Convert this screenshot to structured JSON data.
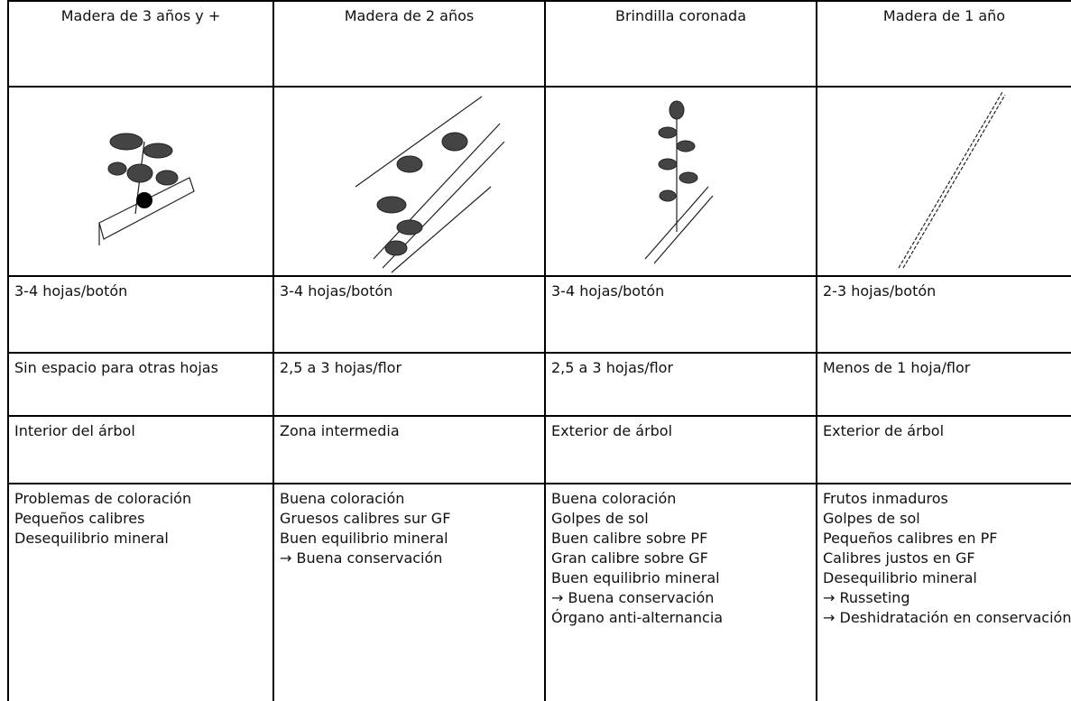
{
  "table": {
    "header": [
      "Madera de 3 años y +",
      "Madera de 2 años",
      "Brindilla coronada",
      "Madera de 1 año"
    ],
    "rows": [
      [
        "3-4 hojas/botón",
        "3-4 hojas/botón",
        "3-4 hojas/botón",
        "2-3 hojas/botón"
      ],
      [
        "Sin espacio para otras hojas",
        "2,5 a 3 hojas/flor",
        "2,5 a 3 hojas/flor",
        "Menos de 1 hoja/flor"
      ],
      [
        "Interior del árbol",
        "Zona intermedia",
        "Exterior de árbol",
        "Exterior de árbol"
      ],
      [
        [
          "Problemas de coloración",
          "Pequeños calibres",
          "Desequilibrio mineral"
        ],
        [
          "Buena coloración",
          "Gruesos calibres sur GF",
          "Buen equilibrio mineral",
          "→ Buena conservación"
        ],
        [
          "Buena coloración",
          "Golpes de sol",
          "Buen calibre sobre PF",
          "Gran calibre sobre GF",
          "Buen equilibrio mineral",
          "→ Buena conservación",
          "Órgano anti-alternancia"
        ],
        [
          "Frutos inmaduros",
          "Golpes de sol",
          "Pequeños calibres en PF",
          "Calibres justos en GF",
          "Desequilibrio mineral",
          "→ Russeting",
          "→ Deshidratación en conservación"
        ]
      ]
    ]
  }
}
